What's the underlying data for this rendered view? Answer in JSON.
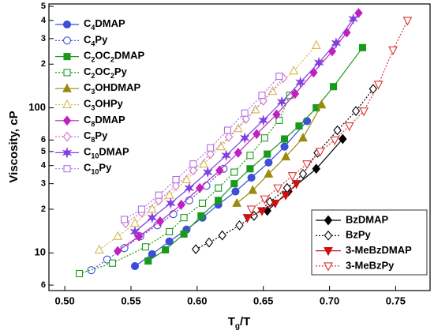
{
  "chart_data": {
    "type": "line",
    "x_label": "Tg/T",
    "y_label": "Viscosity, cP",
    "xlim": [
      0.488,
      0.776
    ],
    "ylim": [
      5.5,
      520
    ],
    "ylog": true,
    "xticks": [
      {
        "value": 0.5,
        "label": "0.50"
      },
      0.55,
      {
        "value": 0.6,
        "label": "0.60"
      },
      0.65,
      {
        "value": 0.7,
        "label": "0.70"
      },
      0.75
    ],
    "yticks": [
      6,
      10,
      {
        "value": 20,
        "label": "2"
      },
      {
        "value": 30,
        "label": "3"
      },
      {
        "value": 40,
        "label": "4"
      },
      {
        "value": 50,
        "label": "5"
      },
      {
        "value": 60,
        "label": "6"
      },
      100,
      {
        "value": 200,
        "label": "2"
      },
      {
        "value": 300,
        "label": "3"
      },
      {
        "value": 400,
        "label": "4"
      },
      {
        "value": 500,
        "label": "5"
      }
    ],
    "series": [
      {
        "name": "C4DMAP",
        "color": "#3b4fd8",
        "marker": "circle",
        "filled": true,
        "linestyle": "solid",
        "legend": "left",
        "x": [
          0.553,
          0.566,
          0.579,
          0.592,
          0.604,
          0.616,
          0.629,
          0.641,
          0.654,
          0.666,
          0.683
        ],
        "values": [
          8.1,
          9.8,
          12,
          14.5,
          17.5,
          21.5,
          26.5,
          33,
          42,
          54,
          81
        ]
      },
      {
        "name": "C4Py",
        "color": "#3b4fd8",
        "marker": "circle",
        "filled": false,
        "linestyle": "dotted",
        "legend": "left",
        "x": [
          0.52,
          0.532,
          0.545,
          0.557,
          0.57,
          0.582,
          0.594,
          0.607,
          0.62
        ],
        "values": [
          7.6,
          9,
          10.8,
          13,
          15.5,
          18.5,
          23,
          29,
          38
        ]
      },
      {
        "name": "C2OC2DMAP",
        "color": "#1a9a1a",
        "marker": "square",
        "filled": true,
        "linestyle": "solid",
        "legend": "left",
        "x": [
          0.563,
          0.576,
          0.59,
          0.603,
          0.616,
          0.628,
          0.64,
          0.653,
          0.666,
          0.677,
          0.69,
          0.703,
          0.725
        ],
        "values": [
          8.8,
          10.5,
          13.5,
          18,
          23,
          30,
          38,
          48,
          61,
          75,
          100,
          140,
          260
        ]
      },
      {
        "name": "C2OC2Py",
        "color": "#1a9a1a",
        "marker": "square",
        "filled": false,
        "linestyle": "dotted",
        "legend": "left",
        "x": [
          0.511,
          0.536,
          0.561,
          0.579,
          0.59,
          0.604,
          0.616,
          0.628,
          0.64,
          0.651,
          0.662,
          0.67
        ],
        "values": [
          7.2,
          8.5,
          11,
          14,
          17.5,
          22,
          28,
          36,
          47,
          62,
          82,
          122
        ]
      },
      {
        "name": "C3OHDMAP",
        "color": "#9a8a10",
        "marker": "triangle",
        "filled": true,
        "linestyle": "solid",
        "legend": "left",
        "x": [
          0.63,
          0.642,
          0.654,
          0.667,
          0.68,
          0.694
        ],
        "values": [
          22,
          27,
          35,
          46,
          62,
          105
        ]
      },
      {
        "name": "C3OHPy",
        "color": "#d4b84a",
        "marker": "triangle",
        "filled": false,
        "linestyle": "dotted",
        "legend": "left",
        "x": [
          0.526,
          0.54,
          0.553,
          0.566,
          0.579,
          0.592,
          0.605,
          0.618,
          0.631,
          0.644,
          0.657,
          0.673,
          0.69
        ],
        "values": [
          10.5,
          13,
          16,
          20,
          25,
          32,
          41,
          54,
          72,
          97,
          130,
          180,
          270
        ]
      },
      {
        "name": "C8DMAP",
        "color": "#c020c0",
        "marker": "diamond",
        "filled": true,
        "linestyle": "solid",
        "legend": "left",
        "x": [
          0.54,
          0.556,
          0.572,
          0.588,
          0.602,
          0.617,
          0.631,
          0.645,
          0.66,
          0.674,
          0.688,
          0.702,
          0.713,
          0.722
        ],
        "values": [
          10.3,
          13,
          16.5,
          21.5,
          28,
          37,
          49,
          66,
          90,
          125,
          175,
          245,
          330,
          450
        ]
      },
      {
        "name": "C8Py",
        "color": "#d070d0",
        "marker": "diamond",
        "filled": false,
        "linestyle": "dotted",
        "legend": "left",
        "x": [
          0.546,
          0.558,
          0.571,
          0.584,
          0.597,
          0.61,
          0.624,
          0.637,
          0.65,
          0.665
        ],
        "values": [
          16,
          19,
          23,
          29,
          37,
          48,
          63,
          84,
          112,
          160
        ]
      },
      {
        "name": "C10DMAP",
        "color": "#8040e0",
        "marker": "star",
        "filled": true,
        "linestyle": "solid",
        "legend": "left",
        "x": [
          0.553,
          0.566,
          0.58,
          0.594,
          0.608,
          0.622,
          0.636,
          0.65,
          0.664,
          0.678,
          0.692,
          0.705,
          0.718
        ],
        "values": [
          14,
          17.5,
          22,
          28,
          36,
          47,
          62,
          82,
          110,
          150,
          205,
          280,
          410
        ]
      },
      {
        "name": "C10Py",
        "color": "#b070e0",
        "marker": "square",
        "filled": false,
        "linestyle": "dotted",
        "legend": "left",
        "x": [
          0.545,
          0.558,
          0.571,
          0.584,
          0.597,
          0.61,
          0.623,
          0.636,
          0.649,
          0.662
        ],
        "values": [
          17,
          20,
          25,
          32,
          41,
          53,
          70,
          92,
          122,
          165
        ]
      },
      {
        "name": "BzDMAP",
        "color": "#000000",
        "marker": "diamond",
        "filled": true,
        "linestyle": "solid",
        "legend": "right",
        "x": [
          0.653,
          0.669,
          0.69,
          0.71
        ],
        "values": [
          19.5,
          26.5,
          38,
          61
        ]
      },
      {
        "name": "BzPy",
        "color": "#000000",
        "marker": "diamond",
        "filled": false,
        "linestyle": "dotted",
        "legend": "right",
        "x": [
          0.599,
          0.609,
          0.619,
          0.632,
          0.643,
          0.655,
          0.668,
          0.68,
          0.691,
          0.706,
          0.72,
          0.733
        ],
        "values": [
          10.6,
          11.8,
          13.2,
          15.5,
          18,
          22.5,
          28,
          35,
          49,
          70,
          95,
          135
        ]
      },
      {
        "name": "3-MeBzDMAP",
        "color": "#cc1111",
        "marker": "tridown",
        "filled": true,
        "linestyle": "solid",
        "legend": "right",
        "x": [
          0.638,
          0.649,
          0.659,
          0.667,
          0.675
        ],
        "values": [
          17.5,
          19.5,
          22,
          25,
          30
        ]
      },
      {
        "name": "3-MeBzPy",
        "color": "#dd3333",
        "marker": "tridown",
        "filled": false,
        "linestyle": "dotted",
        "legend": "right",
        "x": [
          0.641,
          0.651,
          0.661,
          0.672,
          0.683,
          0.693,
          0.704,
          0.715,
          0.726,
          0.737,
          0.748,
          0.759
        ],
        "values": [
          20,
          23.5,
          28,
          34,
          41,
          50,
          60,
          75,
          95,
          145,
          250,
          400
        ]
      }
    ]
  }
}
